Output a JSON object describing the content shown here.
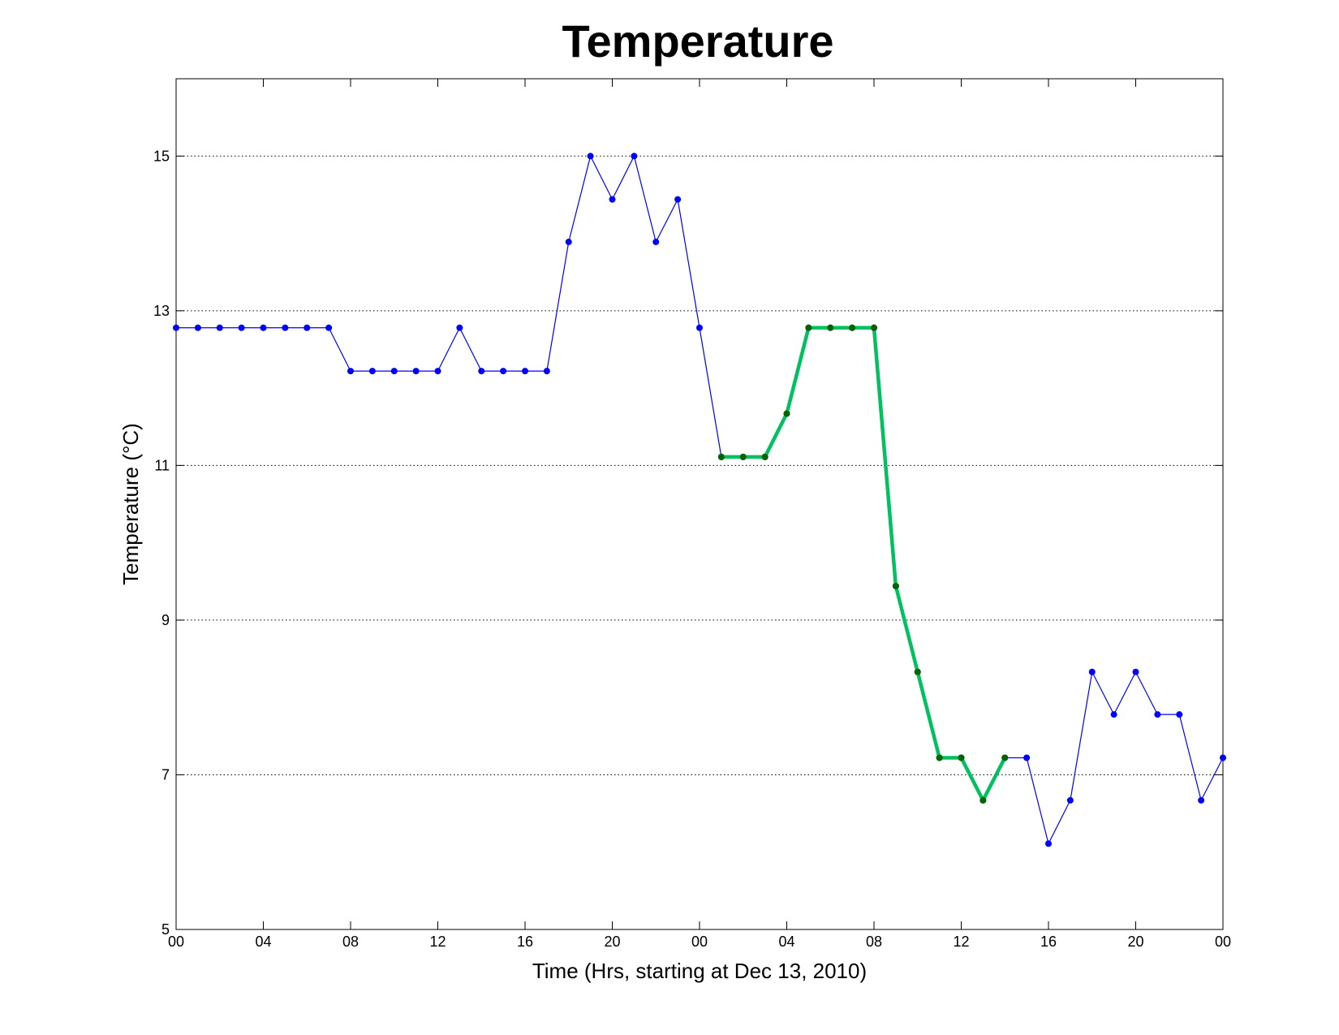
{
  "chart_data": {
    "type": "line",
    "title": "Temperature",
    "xlabel": "Time (Hrs, starting at Dec 13, 2010)",
    "ylabel": "Temperature (°C)",
    "x_hours": [
      0,
      1,
      2,
      3,
      4,
      5,
      6,
      7,
      8,
      9,
      10,
      11,
      12,
      13,
      14,
      15,
      16,
      17,
      18,
      19,
      20,
      21,
      22,
      23,
      24,
      25,
      26,
      27,
      28,
      29,
      30,
      31,
      32,
      33,
      34,
      35,
      36,
      37,
      38,
      39,
      40,
      41,
      42,
      43,
      44,
      45,
      46,
      47,
      48
    ],
    "xlim": [
      0,
      48
    ],
    "ylim": [
      5,
      16
    ],
    "x_tick_values": [
      0,
      4,
      8,
      12,
      16,
      20,
      24,
      28,
      32,
      36,
      40,
      44,
      48
    ],
    "x_tick_labels": [
      "00",
      "04",
      "08",
      "12",
      "16",
      "20",
      "00",
      "04",
      "08",
      "12",
      "16",
      "20",
      "00"
    ],
    "y_ticks": [
      5,
      7,
      9,
      11,
      13,
      15
    ],
    "grid_y": true,
    "series": [
      {
        "color": "#0000ff",
        "x": [
          0,
          1,
          2,
          3,
          4,
          5,
          6,
          7,
          8,
          9,
          10,
          11,
          12,
          13,
          14,
          15,
          16,
          17,
          18,
          19,
          20,
          21,
          22,
          23,
          24,
          25,
          26,
          27,
          28,
          29,
          30,
          31,
          32,
          33,
          34,
          35,
          36,
          37,
          38,
          39,
          40,
          41,
          42,
          43,
          44,
          45,
          46,
          47,
          48
        ],
        "values": [
          12.78,
          12.78,
          12.78,
          12.78,
          12.78,
          12.78,
          12.78,
          12.78,
          12.22,
          12.22,
          12.22,
          12.22,
          12.22,
          12.78,
          12.22,
          12.22,
          12.22,
          12.22,
          13.89,
          15.0,
          14.44,
          15.0,
          13.89,
          14.44,
          12.78,
          11.11,
          11.11,
          11.11,
          11.67,
          12.78,
          12.78,
          12.78,
          12.78,
          9.44,
          8.33,
          7.22,
          7.22,
          6.67,
          7.22,
          7.22,
          6.11,
          6.67,
          8.33,
          7.78,
          8.33,
          7.78,
          7.78,
          6.67,
          7.22
        ]
      },
      {
        "color": "#00c060",
        "marker_color": "#006400",
        "x": [
          25,
          26,
          27,
          28,
          29,
          30,
          31,
          32,
          33,
          34,
          35,
          36,
          37,
          38
        ],
        "values": [
          11.11,
          11.11,
          11.11,
          11.67,
          12.78,
          12.78,
          12.78,
          12.78,
          9.44,
          8.33,
          7.22,
          7.22,
          6.67,
          7.22
        ]
      }
    ]
  }
}
